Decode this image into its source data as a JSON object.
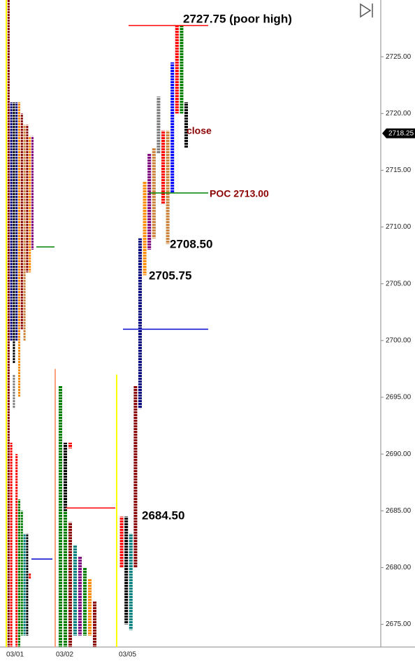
{
  "chart_data": {
    "type": "tpo",
    "ylim": [
      2673,
      2730
    ],
    "yticks": [
      {
        "value": 2675,
        "label": "2675.00"
      },
      {
        "value": 2680,
        "label": "2680.00"
      },
      {
        "value": 2685,
        "label": "2685.00"
      },
      {
        "value": 2690,
        "label": "2690.00"
      },
      {
        "value": 2695,
        "label": "2695.00"
      },
      {
        "value": 2700,
        "label": "2700.00"
      },
      {
        "value": 2705,
        "label": "2705.00"
      },
      {
        "value": 2710,
        "label": "2710.00"
      },
      {
        "value": 2715,
        "label": "2715.00"
      },
      {
        "value": 2720,
        "label": "2720.00"
      },
      {
        "value": 2725,
        "label": "2725.00"
      }
    ],
    "current_price": {
      "value": 2718.25,
      "label": "2718.25"
    },
    "days": [
      {
        "date": "03/01",
        "columns": [
          [
            {
              "color": "#ffff00",
              "low": 2673,
              "high": 2730
            }
          ],
          [
            {
              "color": "#8b0000",
              "low": 2673,
              "high": 2730
            }
          ],
          [
            {
              "color": "#000080",
              "low": 2700,
              "high": 2721
            },
            {
              "color": "#ff0000",
              "low": 2673,
              "high": 2691
            }
          ],
          [
            {
              "color": "#000000",
              "low": 2698,
              "high": 2721
            },
            {
              "color": "#808080",
              "low": 2694,
              "high": 2697
            }
          ],
          [
            {
              "color": "#000080",
              "low": 2700,
              "high": 2721
            },
            {
              "color": "#ff0000",
              "low": 2673,
              "high": 2690
            }
          ],
          [
            {
              "color": "#ff8c00",
              "low": 2695,
              "high": 2721
            },
            {
              "color": "#008000",
              "low": 2673,
              "high": 2686
            }
          ],
          [
            {
              "color": "#8b0000",
              "low": 2701,
              "high": 2720
            },
            {
              "color": "#008000",
              "low": 2674,
              "high": 2685
            }
          ],
          [
            {
              "color": "#cd853f",
              "low": 2700,
              "high": 2719
            },
            {
              "color": "#008080",
              "low": 2674,
              "high": 2683
            }
          ],
          [
            {
              "color": "#8b0000",
              "low": 2706,
              "high": 2719
            },
            {
              "color": "#000000",
              "low": 2674,
              "high": 2683
            }
          ],
          [
            {
              "color": "#ff8c00",
              "low": 2706,
              "high": 2718
            },
            {
              "color": "#ff0000",
              "low": 2679,
              "high": 2679.5
            }
          ],
          [
            {
              "color": "#800080",
              "low": 2708,
              "high": 2718
            }
          ]
        ]
      },
      {
        "date": "03/02",
        "columns": [
          [
            {
              "color": "#ffa07a",
              "low": 2673,
              "high": 2697.5
            }
          ],
          [
            {
              "color": "#008000",
              "low": 2673,
              "high": 2696
            }
          ],
          [
            {
              "color": "#000000",
              "low": 2684,
              "high": 2691
            },
            {
              "color": "#008000",
              "low": 2673,
              "high": 2685
            }
          ],
          [
            {
              "color": "#ff0000",
              "low": 2690.5,
              "high": 2691
            },
            {
              "color": "#8b0000",
              "low": 2673,
              "high": 2684
            }
          ],
          [
            {
              "color": "#008080",
              "low": 2674,
              "high": 2682
            }
          ],
          [
            {
              "color": "#800080",
              "low": 2674,
              "high": 2681
            }
          ],
          [
            {
              "color": "#008000",
              "low": 2674,
              "high": 2680
            }
          ],
          [
            {
              "color": "#ff8c00",
              "low": 2674,
              "high": 2679
            }
          ],
          [
            {
              "color": "#8b0000",
              "low": 2673,
              "high": 2677
            }
          ]
        ]
      },
      {
        "date": "03/05",
        "columns": [
          [
            {
              "color": "#ffff00",
              "low": 2673,
              "high": 2697
            }
          ],
          [
            {
              "color": "#ff0000",
              "low": 2680,
              "high": 2684.5
            }
          ],
          [
            {
              "color": "#000000",
              "low": 2675,
              "high": 2684.5
            }
          ],
          [
            {
              "color": "#008080",
              "low": 2674.5,
              "high": 2683
            }
          ],
          [
            {
              "color": "#8b0000",
              "low": 2680,
              "high": 2696
            }
          ],
          [
            {
              "color": "#000080",
              "low": 2694,
              "high": 2709
            }
          ],
          [
            {
              "color": "#ff8c00",
              "low": 2705.75,
              "high": 2714
            }
          ],
          [
            {
              "color": "#800080",
              "low": 2708,
              "high": 2716.5
            }
          ],
          [
            {
              "color": "#cd853f",
              "low": 2709,
              "high": 2717
            }
          ],
          [
            {
              "color": "#808080",
              "low": 2716.5,
              "high": 2721.5
            }
          ],
          [
            {
              "color": "#ff0000",
              "low": 2712,
              "high": 2718.5
            }
          ],
          [
            {
              "color": "#cd853f",
              "low": 2708.5,
              "high": 2718.5
            }
          ],
          [
            {
              "color": "#0000ff",
              "low": 2713,
              "high": 2724.5
            }
          ],
          [
            {
              "color": "#ff0000",
              "low": 2720,
              "high": 2727.75
            }
          ],
          [
            {
              "color": "#008000",
              "low": 2720,
              "high": 2727.75
            }
          ],
          [
            {
              "color": "#000000",
              "low": 2717,
              "high": 2721
            }
          ]
        ]
      }
    ],
    "levels": [
      {
        "value": 2708.25,
        "color": "#008000"
      },
      {
        "value": 2680.75,
        "color": "#0000cd"
      },
      {
        "value": 2685.25,
        "color": "#ff0000"
      },
      {
        "value": 2701,
        "color": "#0000cd"
      },
      {
        "value": 2713,
        "color": "#008000"
      },
      {
        "value": 2727.75,
        "color": "#ff0000"
      }
    ],
    "annotations": [
      "2727.75 (poor high)",
      "close",
      "POC 2713.00",
      "2708.50",
      "2705.75",
      "2684.50"
    ]
  }
}
